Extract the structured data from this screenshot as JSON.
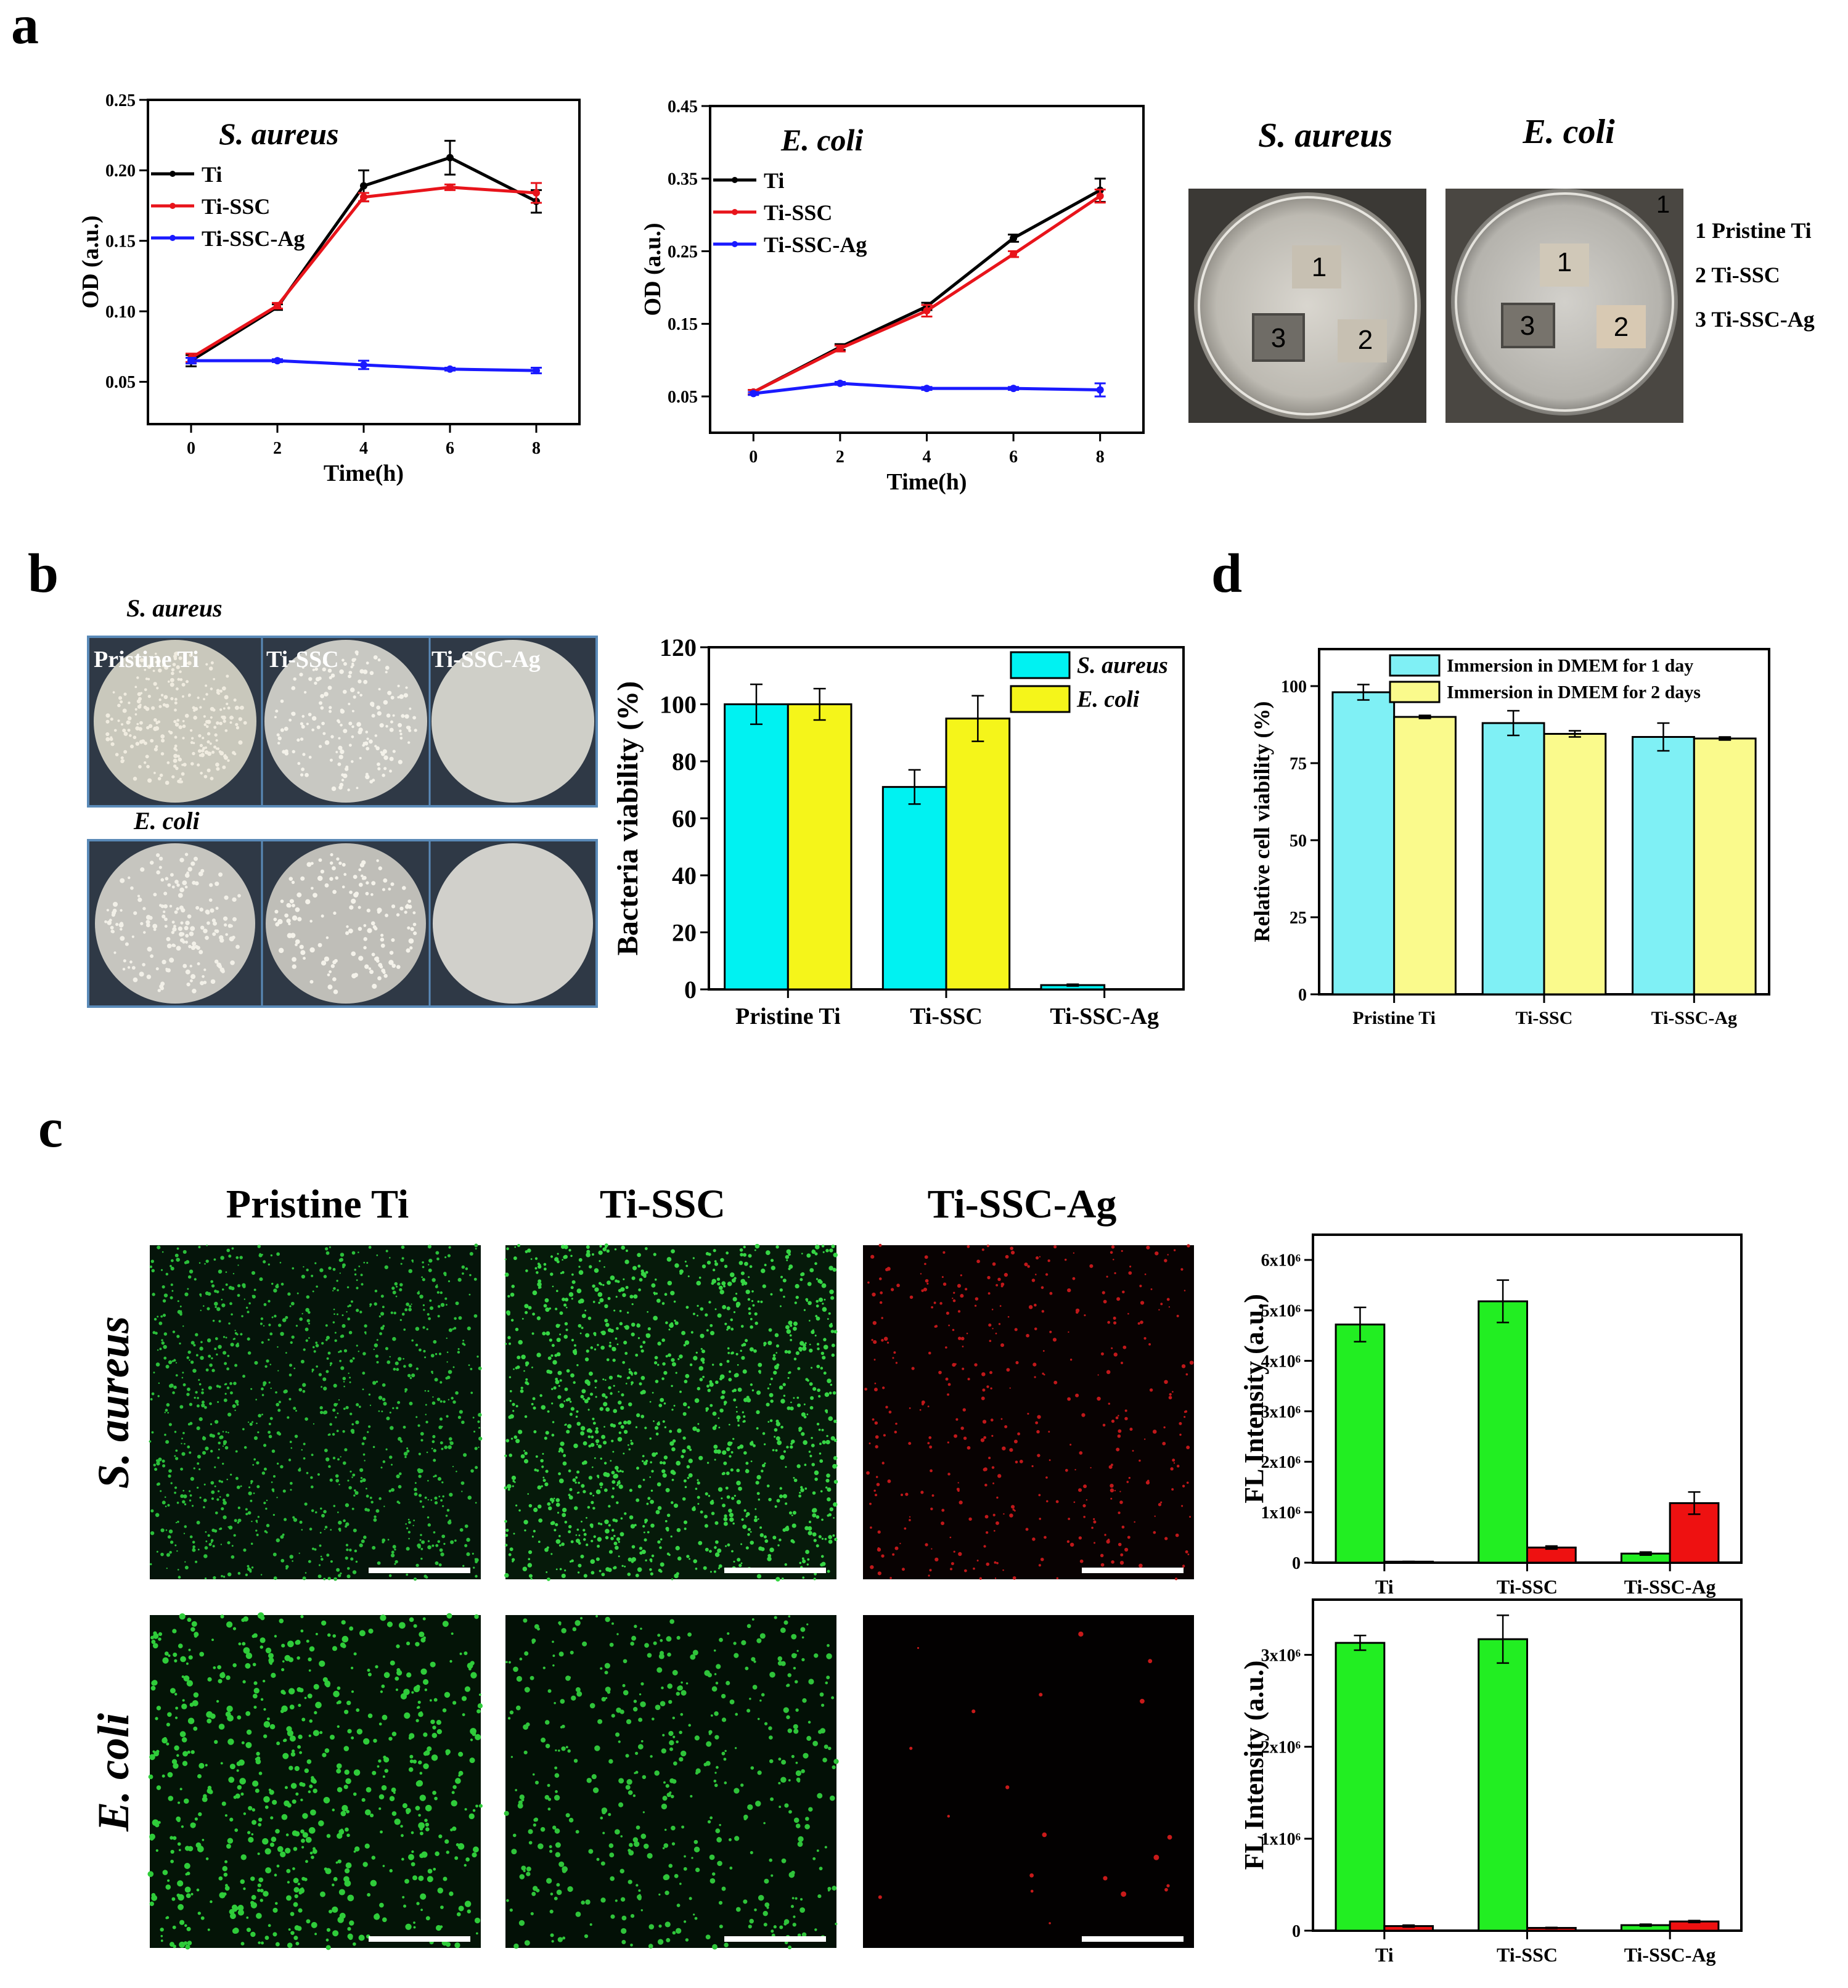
{
  "panel_labels": [
    "a",
    "b",
    "c",
    "d"
  ],
  "plates_a": {
    "titles": [
      "S. aureus",
      "E. coli"
    ],
    "sample_numbers": [
      "1",
      "2",
      "3"
    ],
    "legend": [
      "1 Pristine Ti",
      "2 Ti-SSC",
      "3 Ti-SSC-Ag"
    ]
  },
  "plates_b": {
    "row_titles": [
      "S. aureus",
      "E. coli"
    ],
    "column_labels": [
      "Pristine Ti",
      "Ti-SSC",
      "Ti-SSC-Ag"
    ]
  },
  "fluorescence_c": {
    "column_titles": [
      "Pristine Ti",
      "Ti-SSC",
      "Ti-SSC-Ag"
    ],
    "row_titles": [
      "S. aureus",
      "E. coli"
    ]
  },
  "colors": {
    "black": "#000000",
    "red": "#e8141b",
    "blue": "#1a1aff",
    "cyan": "#00f2f2",
    "yellow": "#f5f51a",
    "light_cyan": "#7ff0f5",
    "light_yellow": "#fafa8c",
    "green": "#22ee22",
    "fl_red": "#ee1111"
  },
  "chart_data": [
    {
      "id": "a1",
      "type": "line",
      "title": "S. aureus",
      "xlabel": "Time(h)",
      "ylabel": "OD (a.u.)",
      "xlim": [
        -1,
        9
      ],
      "ylim": [
        0.02,
        0.25
      ],
      "xticks": [
        0,
        2,
        4,
        6,
        8
      ],
      "yticks": [
        0.05,
        0.1,
        0.15,
        0.2,
        0.25
      ],
      "ytick_labels": [
        "0.05",
        "0.10",
        "0.15",
        "0.20",
        "0.25"
      ],
      "legend_position": "top-left",
      "x": [
        0,
        2,
        4,
        6,
        8
      ],
      "series": [
        {
          "name": "Ti",
          "color": "#000000",
          "values": [
            0.065,
            0.103,
            0.189,
            0.209,
            0.178
          ],
          "errors": [
            0.004,
            0.002,
            0.011,
            0.012,
            0.008
          ]
        },
        {
          "name": "Ti-SSC",
          "color": "#e8141b",
          "values": [
            0.067,
            0.104,
            0.181,
            0.188,
            0.184
          ],
          "errors": [
            0.003,
            0.002,
            0.003,
            0.002,
            0.007
          ]
        },
        {
          "name": "Ti-SSC-Ag",
          "color": "#1a1aff",
          "values": [
            0.065,
            0.065,
            0.062,
            0.059,
            0.058
          ],
          "errors": [
            0.002,
            0.001,
            0.003,
            0.001,
            0.002
          ]
        }
      ]
    },
    {
      "id": "a2",
      "type": "line",
      "title": "E. coli",
      "xlabel": "Time(h)",
      "ylabel": "OD (a.u.)",
      "xlim": [
        -1,
        9
      ],
      "ylim": [
        0.0,
        0.45
      ],
      "xticks": [
        0,
        2,
        4,
        6,
        8
      ],
      "yticks": [
        0.05,
        0.15,
        0.25,
        0.35,
        0.45
      ],
      "ytick_labels": [
        "0.05",
        "0.15",
        "0.25",
        "0.35",
        "0.45"
      ],
      "legend_position": "top-left",
      "x": [
        0,
        2,
        4,
        6,
        8
      ],
      "series": [
        {
          "name": "Ti",
          "color": "#000000",
          "values": [
            0.056,
            0.118,
            0.174,
            0.268,
            0.334
          ],
          "errors": [
            0.003,
            0.004,
            0.005,
            0.005,
            0.016
          ]
        },
        {
          "name": "Ti-SSC",
          "color": "#e8141b",
          "values": [
            0.056,
            0.116,
            0.168,
            0.246,
            0.326
          ],
          "errors": [
            0.003,
            0.004,
            0.008,
            0.004,
            0.009
          ]
        },
        {
          "name": "Ti-SSC-Ag",
          "color": "#1a1aff",
          "values": [
            0.054,
            0.068,
            0.061,
            0.061,
            0.059
          ],
          "errors": [
            0.002,
            0.002,
            0.002,
            0.002,
            0.009
          ]
        }
      ]
    },
    {
      "id": "b",
      "type": "bar",
      "xlabel": "",
      "ylabel": "Bacteria viability (%)",
      "ylim": [
        0,
        120
      ],
      "yticks": [
        0,
        20,
        40,
        60,
        80,
        100,
        120
      ],
      "categories": [
        "Pristine Ti",
        "Ti-SSC",
        "Ti-SSC-Ag"
      ],
      "legend_position": "top-right",
      "series": [
        {
          "name": "S. aureus",
          "color": "#00f2f2",
          "values": [
            100,
            71,
            1.5
          ],
          "errors": [
            7,
            6,
            0.3
          ]
        },
        {
          "name": "E. coli",
          "color": "#f5f51a",
          "values": [
            100,
            95,
            0
          ],
          "errors": [
            5.5,
            8,
            0
          ]
        }
      ]
    },
    {
      "id": "d",
      "type": "bar",
      "xlabel": "",
      "ylabel": "Relative cell viability (%)",
      "ylim": [
        0,
        112
      ],
      "yticks": [
        0,
        25,
        50,
        75,
        100
      ],
      "categories": [
        "Pristine Ti",
        "Ti-SSC",
        "Ti-SSC-Ag"
      ],
      "legend_position": "top",
      "series": [
        {
          "name": "Immersion in DMEM for 1 day",
          "color": "#7ff0f5",
          "values": [
            98,
            88,
            83.5
          ],
          "errors": [
            2.5,
            4,
            4.5
          ]
        },
        {
          "name": "Immersion in DMEM for 2 days",
          "color": "#fafa8c",
          "values": [
            90,
            84.5,
            83
          ],
          "errors": [
            0.5,
            1,
            0.5
          ]
        }
      ]
    },
    {
      "id": "c1",
      "type": "bar",
      "xlabel": "",
      "ylabel": "FL Intensity (a.u.)",
      "ylim": [
        0,
        6500000
      ],
      "yticks": [
        0,
        1000000,
        2000000,
        3000000,
        4000000,
        5000000,
        6000000
      ],
      "ytick_labels": [
        "0",
        "1x10⁶",
        "2x10⁶",
        "3x10⁶",
        "4x10⁶",
        "5x10⁶",
        "6x10⁶"
      ],
      "categories": [
        "Ti",
        "Ti-SSC",
        "Ti-SSC-Ag"
      ],
      "series": [
        {
          "color": "#22ee22",
          "values": [
            4720000,
            5180000,
            180000
          ],
          "errors": [
            340000,
            420000,
            30000
          ]
        },
        {
          "color": "#ee1111",
          "values": [
            20000,
            300000,
            1180000
          ],
          "errors": [
            5000,
            30000,
            220000
          ]
        }
      ]
    },
    {
      "id": "c2",
      "type": "bar",
      "xlabel": "",
      "ylabel": "FL Intensity (a.u.)",
      "ylim": [
        0,
        3600000
      ],
      "yticks": [
        0,
        1000000,
        2000000,
        3000000
      ],
      "ytick_labels": [
        "0",
        "1x10⁶",
        "2x10⁶",
        "3x10⁶"
      ],
      "categories": [
        "Ti",
        "Ti-SSC",
        "Ti-SSC-Ag"
      ],
      "series": [
        {
          "color": "#22ee22",
          "values": [
            3130000,
            3170000,
            60000
          ],
          "errors": [
            80000,
            260000,
            10000
          ]
        },
        {
          "color": "#ee1111",
          "values": [
            50000,
            30000,
            100000
          ],
          "errors": [
            10000,
            5000,
            10000
          ]
        }
      ]
    }
  ]
}
